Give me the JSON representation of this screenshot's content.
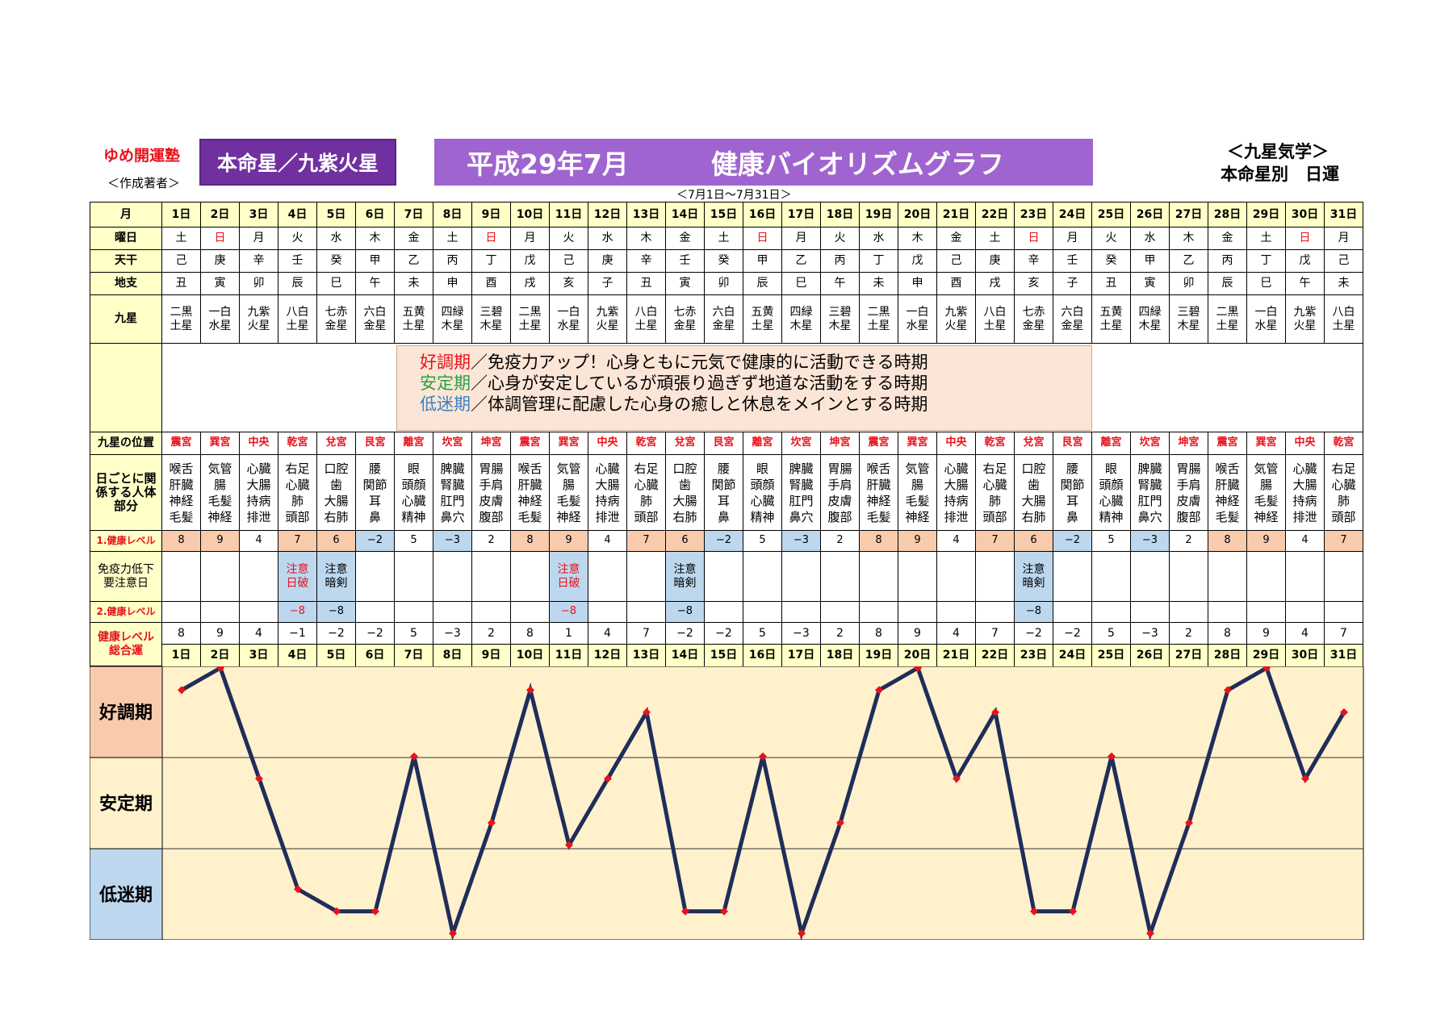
{
  "header": {
    "juku": "ゆめ開運塾",
    "author": "＜作成著者＞",
    "honmei": "本命星／九紫火星",
    "title_month": "平成29年7月",
    "title_main": "健康バイオリズムグラフ",
    "kyusei": "＜九星気学＞",
    "nichiun": "本命星別　日運",
    "range": "＜7月1日～7月31日＞"
  },
  "row_labels": {
    "month": "月",
    "weekday": "曜日",
    "tenkan": "天干",
    "chishi": "地支",
    "kyusei": "九星",
    "position": "九星の位置",
    "body": "日ごとに関係する人体部分",
    "level1": "1.健康レベル",
    "caution": "免疫力低下要注意日",
    "level2": "2.健康レベル",
    "total": "健康レベル総合運"
  },
  "legend": {
    "good_term": "好調期",
    "good_text": "／免疫力アップ！心身ともに元気で健康的に活動できる時期",
    "stable_term": "安定期",
    "stable_text": "／心身が安定しているが頑張り過ぎず地道な活動をする時期",
    "low_term": "低迷期",
    "low_text": "／体調管理に配慮した心身の癒しと休息をメインとする時期"
  },
  "colors": {
    "yellow": "#ffffc8",
    "purple": "#7030a0",
    "title_purple": "#a064d0",
    "red": "#e8121b",
    "pink": "#f8cbad",
    "blue": "#bdd7ee",
    "graph_bg": "#fff1cc",
    "line": "#1f2d5a"
  },
  "days": [
    "1日",
    "2日",
    "3日",
    "4日",
    "5日",
    "6日",
    "7日",
    "8日",
    "9日",
    "10日",
    "11日",
    "12日",
    "13日",
    "14日",
    "15日",
    "16日",
    "17日",
    "18日",
    "19日",
    "20日",
    "21日",
    "22日",
    "23日",
    "24日",
    "25日",
    "26日",
    "27日",
    "28日",
    "29日",
    "30日",
    "31日"
  ],
  "weekdays": [
    "土",
    "日",
    "月",
    "火",
    "水",
    "木",
    "金",
    "土",
    "日",
    "月",
    "火",
    "水",
    "木",
    "金",
    "土",
    "日",
    "月",
    "火",
    "水",
    "木",
    "金",
    "土",
    "日",
    "月",
    "火",
    "水",
    "木",
    "金",
    "土",
    "日",
    "月"
  ],
  "tenkan": [
    "己",
    "庚",
    "辛",
    "壬",
    "癸",
    "甲",
    "乙",
    "丙",
    "丁",
    "戊",
    "己",
    "庚",
    "辛",
    "壬",
    "癸",
    "甲",
    "乙",
    "丙",
    "丁",
    "戊",
    "己",
    "庚",
    "辛",
    "壬",
    "癸",
    "甲",
    "乙",
    "丙",
    "丁",
    "戊",
    "己"
  ],
  "chishi": [
    "丑",
    "寅",
    "卯",
    "辰",
    "巳",
    "午",
    "未",
    "申",
    "酉",
    "戌",
    "亥",
    "子",
    "丑",
    "寅",
    "卯",
    "辰",
    "巳",
    "午",
    "未",
    "申",
    "酉",
    "戌",
    "亥",
    "子",
    "丑",
    "寅",
    "卯",
    "辰",
    "巳",
    "午",
    "未"
  ],
  "kyusei_top": [
    "二黒",
    "一白",
    "九紫",
    "八白",
    "七赤",
    "六白",
    "五黄",
    "四緑",
    "三碧",
    "二黒",
    "一白",
    "九紫",
    "八白",
    "七赤",
    "六白",
    "五黄",
    "四緑",
    "三碧",
    "二黒",
    "一白",
    "九紫",
    "八白",
    "七赤",
    "六白",
    "五黄",
    "四緑",
    "三碧",
    "二黒",
    "一白",
    "九紫",
    "八白"
  ],
  "kyusei_bottom": [
    "土星",
    "水星",
    "火星",
    "土星",
    "金星",
    "金星",
    "土星",
    "木星",
    "木星",
    "土星",
    "水星",
    "火星",
    "土星",
    "金星",
    "金星",
    "土星",
    "木星",
    "木星",
    "土星",
    "水星",
    "火星",
    "土星",
    "金星",
    "金星",
    "土星",
    "木星",
    "木星",
    "土星",
    "水星",
    "火星",
    "土星"
  ],
  "positions": [
    "震宮",
    "巽宮",
    "中央",
    "乾宮",
    "兌宮",
    "艮宮",
    "離宮",
    "坎宮",
    "坤宮",
    "震宮",
    "巽宮",
    "中央",
    "乾宮",
    "兌宮",
    "艮宮",
    "離宮",
    "坎宮",
    "坤宮",
    "震宮",
    "巽宮",
    "中央",
    "乾宮",
    "兌宮",
    "艮宮",
    "離宮",
    "坎宮",
    "坤宮",
    "震宮",
    "巽宮",
    "中央",
    "乾宮"
  ],
  "body_parts": [
    [
      "喉舌",
      "肝臓",
      "神経",
      "毛髪"
    ],
    [
      "気管",
      "腸",
      "毛髪",
      "神経"
    ],
    [
      "心臓",
      "大腸",
      "持病",
      "排泄"
    ],
    [
      "右足",
      "心臓",
      "肺",
      "頭部"
    ],
    [
      "口腔",
      "歯",
      "大腸",
      "右肺"
    ],
    [
      "腰",
      "関節",
      "耳",
      "鼻"
    ],
    [
      "眼",
      "頭顔",
      "心臓",
      "精神"
    ],
    [
      "脾臓",
      "腎臓",
      "肛門",
      "鼻穴"
    ],
    [
      "胃腸",
      "手肩",
      "皮膚",
      "腹部"
    ],
    [
      "喉舌",
      "肝臓",
      "神経",
      "毛髪"
    ],
    [
      "気管",
      "腸",
      "毛髪",
      "神経"
    ],
    [
      "心臓",
      "大腸",
      "持病",
      "排泄"
    ],
    [
      "右足",
      "心臓",
      "肺",
      "頭部"
    ],
    [
      "口腔",
      "歯",
      "大腸",
      "右肺"
    ],
    [
      "腰",
      "関節",
      "耳",
      "鼻"
    ],
    [
      "眼",
      "頭顔",
      "心臓",
      "精神"
    ],
    [
      "脾臓",
      "腎臓",
      "肛門",
      "鼻穴"
    ],
    [
      "胃腸",
      "手肩",
      "皮膚",
      "腹部"
    ],
    [
      "喉舌",
      "肝臓",
      "神経",
      "毛髪"
    ],
    [
      "気管",
      "腸",
      "毛髪",
      "神経"
    ],
    [
      "心臓",
      "大腸",
      "持病",
      "排泄"
    ],
    [
      "右足",
      "心臓",
      "肺",
      "頭部"
    ],
    [
      "口腔",
      "歯",
      "大腸",
      "右肺"
    ],
    [
      "腰",
      "関節",
      "耳",
      "鼻"
    ],
    [
      "眼",
      "頭顔",
      "心臓",
      "精神"
    ],
    [
      "脾臓",
      "腎臓",
      "肛門",
      "鼻穴"
    ],
    [
      "胃腸",
      "手肩",
      "皮膚",
      "腹部"
    ],
    [
      "喉舌",
      "肝臓",
      "神経",
      "毛髪"
    ],
    [
      "気管",
      "腸",
      "毛髪",
      "神経"
    ],
    [
      "心臓",
      "大腸",
      "持病",
      "排泄"
    ],
    [
      "右足",
      "心臓",
      "肺",
      "頭部"
    ]
  ],
  "level1": [
    "8",
    "9",
    "4",
    "7",
    "6",
    "−2",
    "5",
    "−3",
    "2",
    "8",
    "9",
    "4",
    "7",
    "6",
    "−2",
    "5",
    "−3",
    "2",
    "8",
    "9",
    "4",
    "7",
    "6",
    "−2",
    "5",
    "−3",
    "2",
    "8",
    "9",
    "4",
    "7"
  ],
  "caution": [
    "",
    "",
    "",
    [
      "注意",
      "日破"
    ],
    [
      "注意",
      "暗剣"
    ],
    "",
    "",
    "",
    "",
    "",
    [
      "注意",
      "日破"
    ],
    "",
    "",
    [
      "注意",
      "暗剣"
    ],
    "",
    "",
    "",
    "",
    "",
    "",
    "",
    "",
    [
      "注意",
      "暗剣"
    ],
    "",
    "",
    "",
    "",
    "",
    "",
    "",
    ""
  ],
  "level2": [
    "",
    "",
    "",
    "−8",
    "−8",
    "",
    "",
    "",
    "",
    "",
    "−8",
    "",
    "",
    "−8",
    "",
    "",
    "",
    "",
    "",
    "",
    "",
    "",
    "−8",
    "",
    "",
    "",
    "",
    "",
    "",
    "",
    ""
  ],
  "total": [
    "8",
    "9",
    "4",
    "−1",
    "−2",
    "−2",
    "5",
    "−3",
    "2",
    "8",
    "1",
    "4",
    "7",
    "−2",
    "−2",
    "5",
    "−3",
    "2",
    "8",
    "9",
    "4",
    "7",
    "−2",
    "−2",
    "5",
    "−3",
    "2",
    "8",
    "9",
    "4",
    "7"
  ],
  "chart_data": {
    "type": "line",
    "x": [
      "1日",
      "2日",
      "3日",
      "4日",
      "5日",
      "6日",
      "7日",
      "8日",
      "9日",
      "10日",
      "11日",
      "12日",
      "13日",
      "14日",
      "15日",
      "16日",
      "17日",
      "18日",
      "19日",
      "20日",
      "21日",
      "22日",
      "23日",
      "24日",
      "25日",
      "26日",
      "27日",
      "28日",
      "29日",
      "30日",
      "31日"
    ],
    "values": [
      8,
      9,
      4,
      -1,
      -2,
      -2,
      5,
      -3,
      2,
      8,
      1,
      4,
      7,
      -2,
      -2,
      5,
      -3,
      2,
      8,
      9,
      4,
      7,
      -2,
      -2,
      5,
      -3,
      2,
      8,
      9,
      4,
      7
    ],
    "ylim": [
      -3,
      9
    ],
    "bands": [
      "好調期",
      "安定期",
      "低迷期"
    ],
    "grid": true,
    "line_color": "#1f2d5a",
    "marker_color": "#e8121b"
  }
}
